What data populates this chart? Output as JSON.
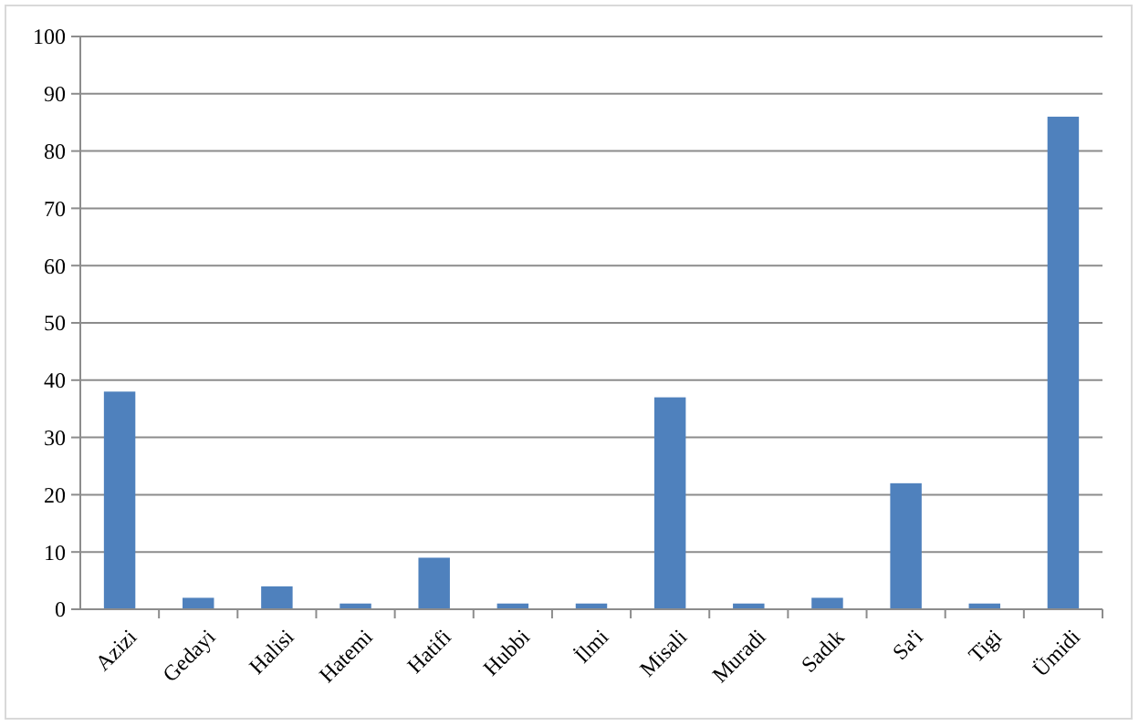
{
  "chart_data": {
    "type": "bar",
    "categories": [
      "Azizi",
      "Gedayi",
      "Halisi",
      "Hatemi",
      "Hatifi",
      "Hubbi",
      "İlmi",
      "Misali",
      "Muradi",
      "Sadık",
      "Sa'i",
      "Tigi",
      "Ümidi"
    ],
    "values": [
      38,
      2,
      4,
      1,
      9,
      1,
      1,
      37,
      1,
      2,
      22,
      1,
      86
    ],
    "color": "#4f81bd",
    "ylim": [
      0,
      100
    ],
    "yticks": [
      0,
      10,
      20,
      30,
      40,
      50,
      60,
      70,
      80,
      90,
      100
    ],
    "grid": "y"
  }
}
